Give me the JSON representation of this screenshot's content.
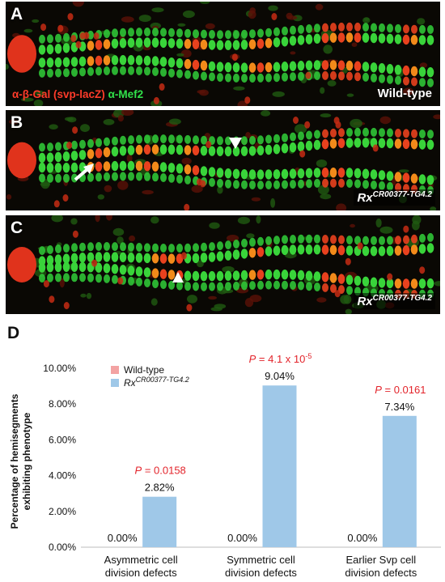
{
  "panels": [
    {
      "label": "A",
      "stain_red": "α-β-Gal (svp-lacZ)",
      "stain_green": "α-Mef2",
      "genotype": "Wild-type"
    },
    {
      "label": "B",
      "genotype_main": "Rx",
      "genotype_sup": "CR00377-TG4.2"
    },
    {
      "label": "C",
      "genotype_main": "Rx",
      "genotype_sup": "CR00377-TG4.2"
    }
  ],
  "panel_d_label": "D",
  "colors": {
    "wildtype": "#f3a3a3",
    "mutant": "#9fc8e8",
    "pvalue": "#e3242b"
  },
  "chart_data": {
    "type": "bar",
    "ylabel": "Percentage of hemisegments exhibiting phenotype",
    "ylim": [
      0,
      10
    ],
    "yticks": [
      "0.00%",
      "2.00%",
      "4.00%",
      "6.00%",
      "8.00%",
      "10.00%"
    ],
    "categories": [
      [
        "Asymmetric cell",
        "division defects"
      ],
      [
        "Symmetric cell",
        "division defects"
      ],
      [
        "Earlier Svp cell",
        "division defects"
      ]
    ],
    "series": [
      {
        "name": "Wild-type",
        "values": [
          0.0,
          0.0,
          0.0
        ],
        "labels": [
          "0.00%",
          "0.00%",
          "0.00%"
        ]
      },
      {
        "name": "Rx",
        "name_sup": "CR00377-TG4.2",
        "values": [
          2.82,
          9.04,
          7.34
        ],
        "labels": [
          "2.82%",
          "9.04%",
          "7.34%"
        ]
      }
    ],
    "pvalues": [
      {
        "prefix": "P",
        "text": " = 0.0158"
      },
      {
        "prefix": "P",
        "text": " = 4.1 x 10",
        "sup": "-5"
      },
      {
        "prefix": "P",
        "text": " = 0.0161"
      }
    ],
    "legend": "top-left",
    "grid": false
  }
}
